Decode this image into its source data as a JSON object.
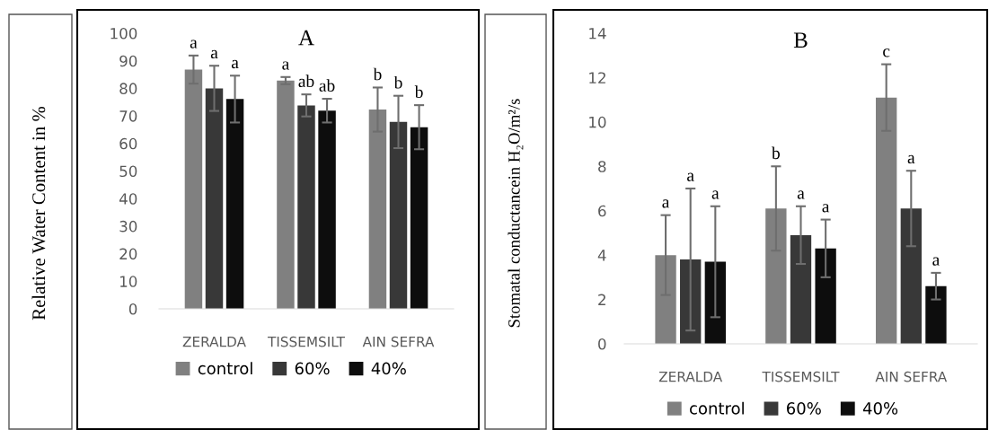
{
  "chart_data": [
    {
      "type": "bar",
      "title": "A",
      "ylabel": "Relative Water Content in %",
      "categories": [
        "ZERALDA",
        "TISSEMSILT",
        "AIN SEFRA"
      ],
      "series": [
        {
          "name": "control",
          "color": "#808080",
          "values": [
            86.8,
            82.8,
            72.3
          ],
          "errors": [
            5.1,
            1.3,
            8
          ]
        },
        {
          "name": "60%",
          "color": "#383838",
          "values": [
            80,
            73.8,
            67.8
          ],
          "errors": [
            8.2,
            4,
            9.5
          ]
        },
        {
          "name": "40%",
          "color": "#0d0d0d",
          "values": [
            76.1,
            71.9,
            65.9
          ],
          "errors": [
            8.5,
            4.3,
            8
          ]
        }
      ],
      "ylim": [
        0,
        100
      ],
      "yticks": [
        0,
        10,
        20,
        30,
        40,
        50,
        60,
        70,
        80,
        90,
        100
      ],
      "grid": false,
      "legend": "bottom",
      "annotations": [
        "a",
        "a",
        "a",
        "a",
        "ab",
        "ab",
        "b",
        "b",
        "b"
      ]
    },
    {
      "type": "bar",
      "title": "B",
      "ylabel": "Stomatal conductancein H₂O/m²/s",
      "categories": [
        "ZERALDA",
        "TISSEMSILT",
        "AIN SEFRA"
      ],
      "series": [
        {
          "name": "control",
          "color": "#808080",
          "values": [
            4,
            6.1,
            11.1
          ],
          "errors": [
            1.8,
            1.9,
            1.5
          ]
        },
        {
          "name": "60%",
          "color": "#383838",
          "values": [
            3.8,
            4.9,
            6.1
          ],
          "errors": [
            3.2,
            1.3,
            1.7
          ]
        },
        {
          "name": "40%",
          "color": "#0d0d0d",
          "values": [
            3.7,
            4.3,
            2.6
          ],
          "errors": [
            2.5,
            1.3,
            0.6
          ]
        }
      ],
      "ylim": [
        0,
        14
      ],
      "yticks": [
        0,
        2,
        4,
        6,
        8,
        10,
        12,
        14
      ],
      "grid": false,
      "legend": "bottom",
      "annotations": [
        "a",
        "a",
        "a",
        "b",
        "a",
        "a",
        "c",
        "a",
        "a"
      ]
    }
  ]
}
